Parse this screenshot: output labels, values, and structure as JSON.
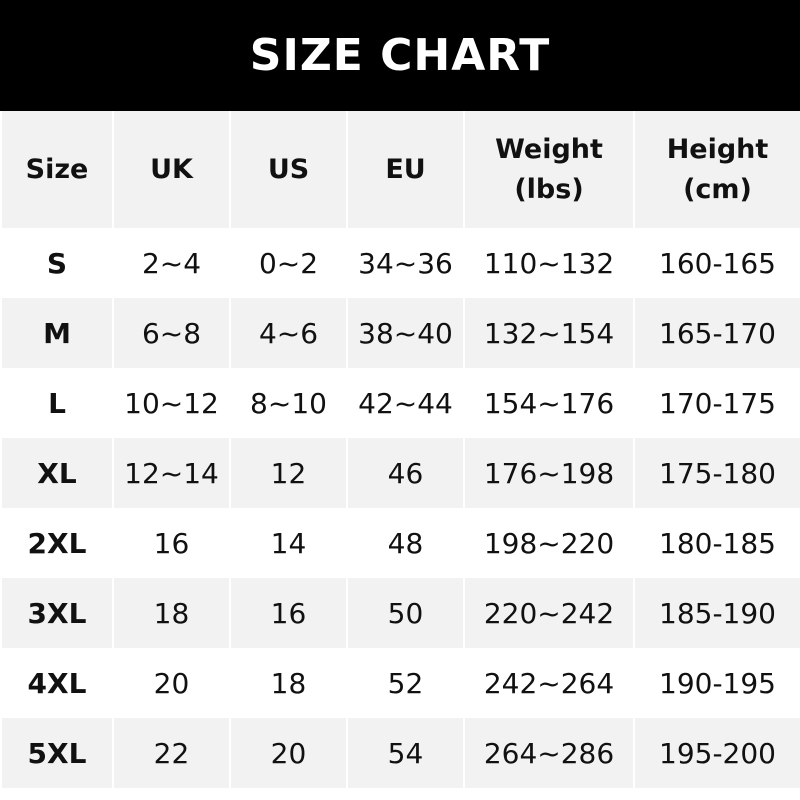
{
  "title": "SIZE CHART",
  "headers": [
    {
      "line1": "Size",
      "line2": ""
    },
    {
      "line1": "UK",
      "line2": ""
    },
    {
      "line1": "US",
      "line2": ""
    },
    {
      "line1": "EU",
      "line2": ""
    },
    {
      "line1": "Weight",
      "line2": "(lbs)"
    },
    {
      "line1": "Height",
      "line2": "(cm)"
    }
  ],
  "rows": [
    [
      "S",
      "2~4",
      "0~2",
      "34~36",
      "110~132",
      "160-165"
    ],
    [
      "M",
      "6~8",
      "4~6",
      "38~40",
      "132~154",
      "165-170"
    ],
    [
      "L",
      "10~12",
      "8~10",
      "42~44",
      "154~176",
      "170-175"
    ],
    [
      "XL",
      "12~14",
      "12",
      "46",
      "176~198",
      "175-180"
    ],
    [
      "2XL",
      "16",
      "14",
      "48",
      "198~220",
      "180-185"
    ],
    [
      "3XL",
      "18",
      "16",
      "50",
      "220~242",
      "185-190"
    ],
    [
      "4XL",
      "20",
      "18",
      "52",
      "242~264",
      "190-195"
    ],
    [
      "5XL",
      "22",
      "20",
      "54",
      "264~286",
      "195-200"
    ]
  ],
  "colors": {
    "banner": "#000000",
    "stripe": "#f2f2f2",
    "text": "#111111"
  }
}
